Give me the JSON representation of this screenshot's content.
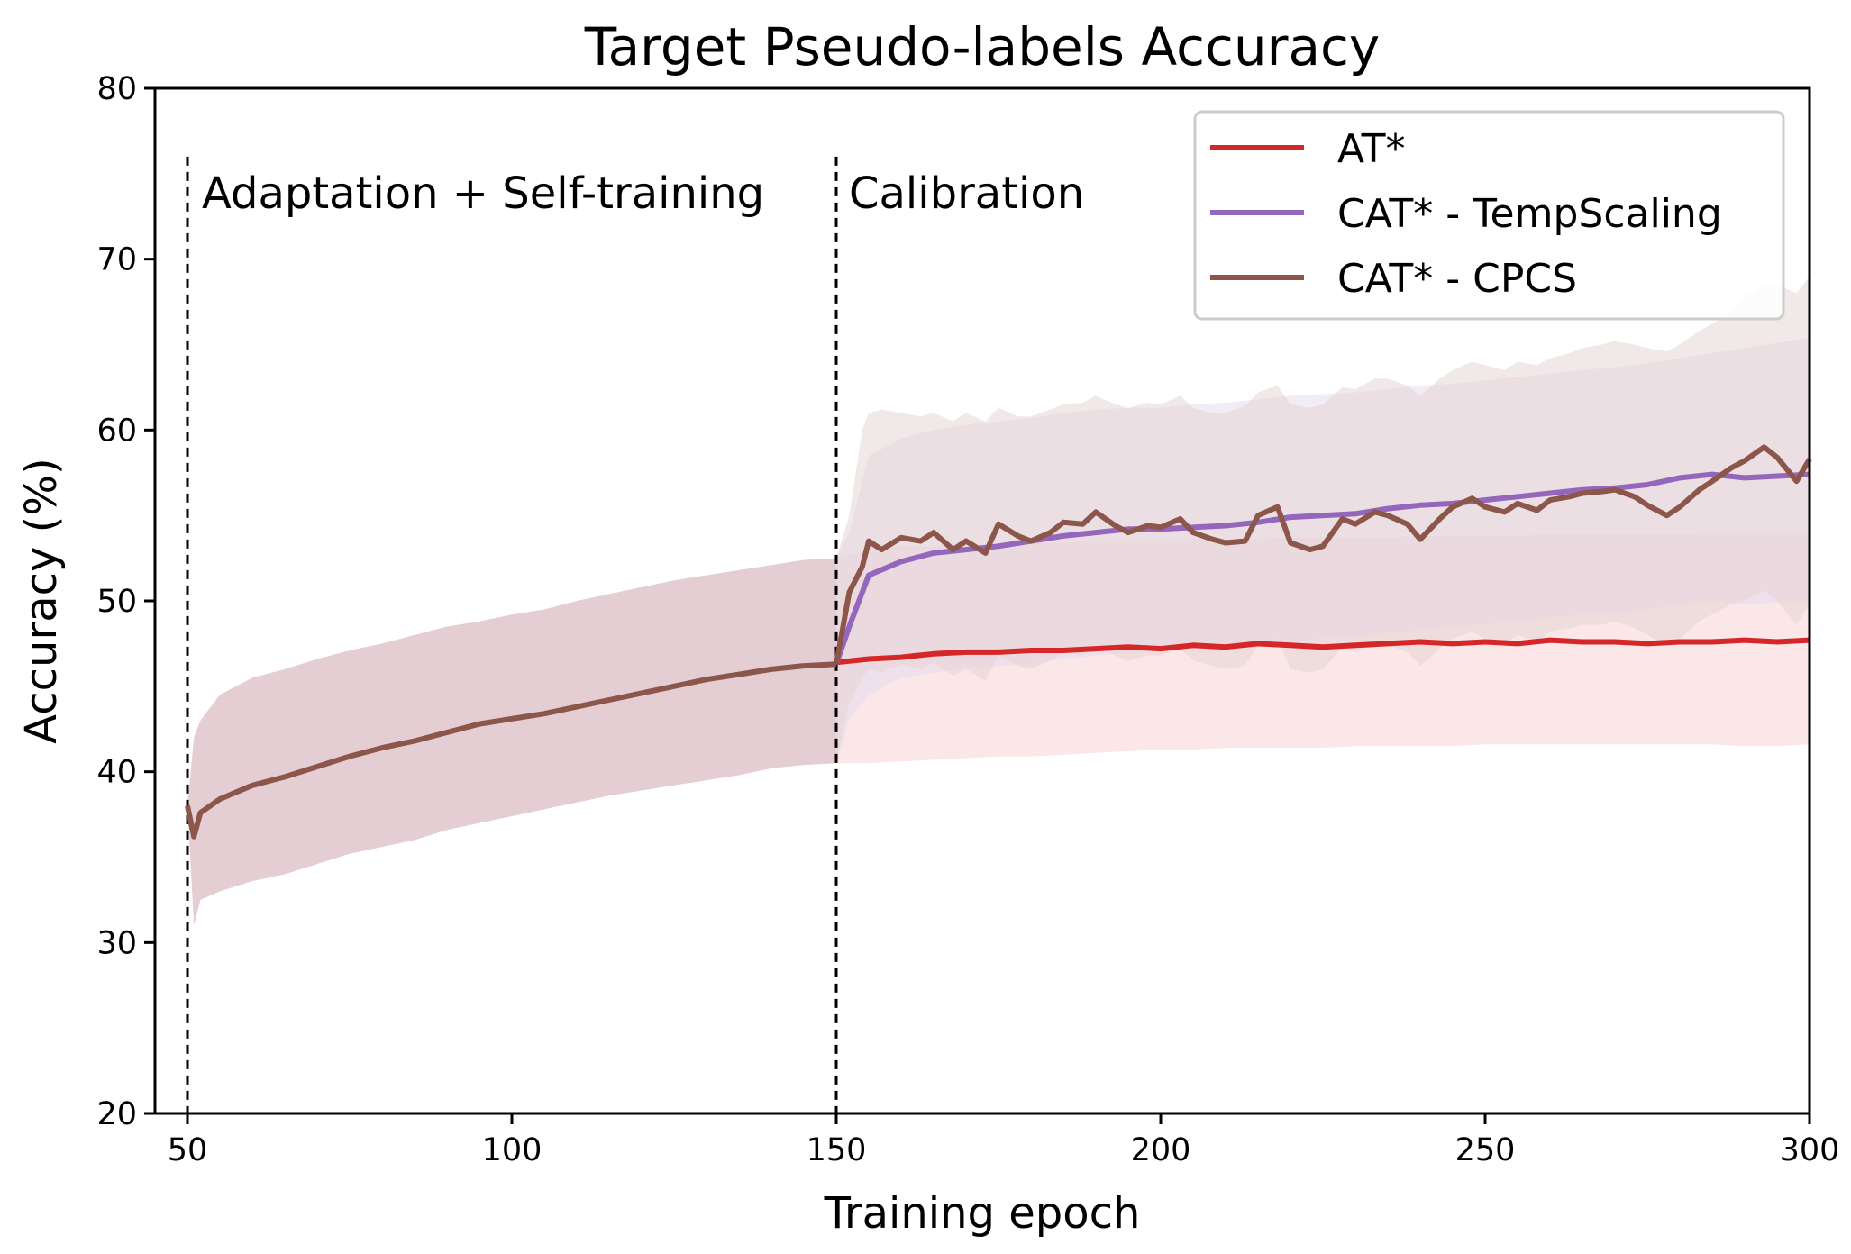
{
  "chart_data": {
    "type": "line",
    "title": "Target Pseudo-labels Accuracy",
    "xlabel": "Training epoch",
    "ylabel": "Accuracy (%)",
    "xlim": [
      45,
      300
    ],
    "ylim": [
      20,
      80
    ],
    "xticks": [
      50,
      100,
      150,
      200,
      250,
      300
    ],
    "yticks": [
      20,
      30,
      40,
      50,
      60,
      70,
      80
    ],
    "grid": false,
    "legend_position": "top-right",
    "phase_lines": [
      {
        "x": 50,
        "label": "Adaptation + Self-training"
      },
      {
        "x": 150,
        "label": "Calibration"
      }
    ],
    "shared_series": {
      "name": "shared (before epoch 150)",
      "x": [
        50,
        51,
        52,
        55,
        60,
        65,
        70,
        75,
        80,
        85,
        90,
        95,
        100,
        105,
        110,
        115,
        120,
        125,
        130,
        135,
        140,
        145,
        150
      ],
      "mean": [
        38,
        36.2,
        37.6,
        38.4,
        39.2,
        39.7,
        40.3,
        40.9,
        41.4,
        41.8,
        42.3,
        42.8,
        43.1,
        43.4,
        43.8,
        44.2,
        44.6,
        45.0,
        45.4,
        45.7,
        46.0,
        46.2,
        46.3
      ],
      "upper": [
        38,
        42.0,
        43.0,
        44.5,
        45.5,
        46.0,
        46.6,
        47.1,
        47.5,
        48.0,
        48.5,
        48.8,
        49.2,
        49.5,
        50.0,
        50.4,
        50.8,
        51.2,
        51.5,
        51.8,
        52.1,
        52.4,
        52.5
      ],
      "lower": [
        38,
        31.0,
        32.5,
        33.0,
        33.6,
        34.0,
        34.6,
        35.2,
        35.6,
        36.0,
        36.6,
        37.0,
        37.4,
        37.8,
        38.2,
        38.6,
        38.9,
        39.2,
        39.5,
        39.8,
        40.2,
        40.4,
        40.5
      ],
      "color": "#8c564b",
      "band_color": "#d9b8c0"
    },
    "series": [
      {
        "name": "AT*",
        "color": "#d62728",
        "band_color": "#f7d4d4",
        "x": [
          150,
          155,
          160,
          165,
          170,
          175,
          180,
          185,
          190,
          195,
          200,
          205,
          210,
          215,
          220,
          225,
          230,
          235,
          240,
          245,
          250,
          255,
          260,
          265,
          270,
          275,
          280,
          285,
          290,
          295,
          300
        ],
        "values": [
          46.4,
          46.6,
          46.7,
          46.9,
          47.0,
          47.0,
          47.1,
          47.1,
          47.2,
          47.3,
          47.2,
          47.4,
          47.3,
          47.5,
          47.4,
          47.3,
          47.4,
          47.5,
          47.6,
          47.5,
          47.6,
          47.5,
          47.7,
          47.6,
          47.6,
          47.5,
          47.6,
          47.6,
          47.7,
          47.6,
          47.7
        ],
        "upper": [
          52.5,
          53.0,
          53.2,
          53.2,
          53.3,
          53.3,
          53.4,
          53.4,
          53.5,
          53.5,
          53.5,
          53.6,
          53.6,
          53.6,
          53.7,
          53.7,
          53.7,
          53.7,
          53.8,
          53.8,
          53.8,
          53.8,
          53.9,
          53.9,
          53.9,
          53.9,
          53.9,
          54.0,
          54.0,
          54.0,
          54.0
        ],
        "lower": [
          40.5,
          40.5,
          40.6,
          40.7,
          40.8,
          40.9,
          40.9,
          41.0,
          41.1,
          41.2,
          41.3,
          41.3,
          41.4,
          41.4,
          41.4,
          41.4,
          41.5,
          41.5,
          41.5,
          41.5,
          41.6,
          41.6,
          41.6,
          41.6,
          41.6,
          41.6,
          41.6,
          41.6,
          41.5,
          41.5,
          41.6
        ]
      },
      {
        "name": "CAT* - TempScaling",
        "color": "#9467bd",
        "band_color": "#e6dcef",
        "x": [
          150,
          152,
          155,
          160,
          165,
          170,
          175,
          180,
          185,
          190,
          195,
          200,
          205,
          210,
          215,
          220,
          225,
          230,
          235,
          240,
          245,
          250,
          255,
          260,
          265,
          270,
          275,
          280,
          285,
          290,
          295,
          300
        ],
        "values": [
          46.3,
          48.5,
          51.5,
          52.3,
          52.8,
          53.0,
          53.2,
          53.5,
          53.8,
          54.0,
          54.2,
          54.2,
          54.3,
          54.4,
          54.6,
          54.9,
          55.0,
          55.1,
          55.4,
          55.6,
          55.7,
          55.9,
          56.1,
          56.3,
          56.5,
          56.6,
          56.8,
          57.2,
          57.4,
          57.2,
          57.3,
          57.4
        ],
        "upper": [
          52.5,
          54.0,
          58.5,
          59.5,
          60.0,
          60.3,
          60.5,
          60.7,
          61.0,
          61.2,
          61.3,
          61.3,
          61.5,
          61.6,
          61.8,
          62.0,
          62.1,
          62.2,
          62.4,
          62.6,
          62.7,
          62.9,
          63.1,
          63.3,
          63.5,
          63.7,
          63.9,
          64.2,
          64.5,
          64.8,
          65.1,
          65.4
        ],
        "lower": [
          40.5,
          43.0,
          44.5,
          45.5,
          45.8,
          46.0,
          46.2,
          46.3,
          46.6,
          46.8,
          47.0,
          47.1,
          47.2,
          47.3,
          47.5,
          47.6,
          47.8,
          47.9,
          48.1,
          48.3,
          48.5,
          48.6,
          48.8,
          49.0,
          49.2,
          49.3,
          49.5,
          49.8,
          50.0,
          49.8,
          49.9,
          50.0
        ]
      },
      {
        "name": "CAT* - CPCS",
        "color": "#8c564b",
        "band_color": "#e6d6d6",
        "x": [
          150,
          152,
          154,
          155,
          157,
          160,
          163,
          165,
          168,
          170,
          173,
          175,
          178,
          180,
          183,
          185,
          188,
          190,
          193,
          195,
          198,
          200,
          203,
          205,
          208,
          210,
          213,
          215,
          218,
          220,
          223,
          225,
          228,
          230,
          233,
          235,
          238,
          240,
          243,
          245,
          248,
          250,
          253,
          255,
          258,
          260,
          263,
          265,
          268,
          270,
          273,
          275,
          278,
          280,
          283,
          285,
          288,
          290,
          293,
          295,
          298,
          300
        ],
        "values": [
          46.3,
          50.5,
          52.0,
          53.5,
          53.0,
          53.7,
          53.5,
          54.0,
          53.0,
          53.5,
          52.8,
          54.5,
          53.8,
          53.5,
          54.0,
          54.6,
          54.5,
          55.2,
          54.4,
          54.0,
          54.4,
          54.3,
          54.8,
          54.0,
          53.6,
          53.4,
          53.5,
          55.0,
          55.5,
          53.4,
          53.0,
          53.2,
          54.8,
          54.5,
          55.2,
          55.0,
          54.5,
          53.6,
          54.8,
          55.5,
          56.0,
          55.5,
          55.2,
          55.7,
          55.3,
          55.9,
          56.1,
          56.3,
          56.4,
          56.5,
          56.1,
          55.6,
          55.0,
          55.5,
          56.5,
          57.0,
          57.8,
          58.2,
          59.0,
          58.4,
          57.0,
          58.3
        ],
        "upper": [
          52.5,
          55.0,
          60.0,
          61.0,
          61.2,
          61.0,
          60.8,
          61.0,
          60.5,
          61.0,
          60.5,
          61.3,
          60.8,
          60.8,
          61.2,
          61.5,
          61.6,
          62.0,
          61.5,
          61.3,
          61.6,
          61.5,
          62.0,
          61.3,
          61.0,
          61.0,
          61.4,
          62.2,
          62.6,
          61.5,
          61.3,
          61.5,
          62.5,
          62.4,
          63.0,
          63.0,
          62.6,
          62.0,
          63.0,
          63.5,
          64.0,
          63.8,
          63.5,
          64.0,
          63.8,
          64.2,
          64.5,
          64.8,
          65.0,
          65.2,
          65.0,
          64.8,
          64.6,
          65.0,
          65.8,
          66.2,
          67.0,
          67.8,
          68.5,
          68.5,
          68.0,
          69.0
        ],
        "lower": [
          40.5,
          44.0,
          45.5,
          46.0,
          45.8,
          46.3,
          46.0,
          46.4,
          45.6,
          46.0,
          45.3,
          46.8,
          46.2,
          46.0,
          46.5,
          47.0,
          46.8,
          47.4,
          46.8,
          46.5,
          46.8,
          46.8,
          47.2,
          46.5,
          46.2,
          46.0,
          46.2,
          47.4,
          47.8,
          46.0,
          45.8,
          46.0,
          47.3,
          47.0,
          47.6,
          47.4,
          47.0,
          46.2,
          47.2,
          47.8,
          48.2,
          47.8,
          47.5,
          48.0,
          47.6,
          48.2,
          48.4,
          48.6,
          48.6,
          48.8,
          48.4,
          48.0,
          47.4,
          47.8,
          48.8,
          49.2,
          49.8,
          50.0,
          50.6,
          50.0,
          48.6,
          49.8
        ]
      }
    ]
  }
}
